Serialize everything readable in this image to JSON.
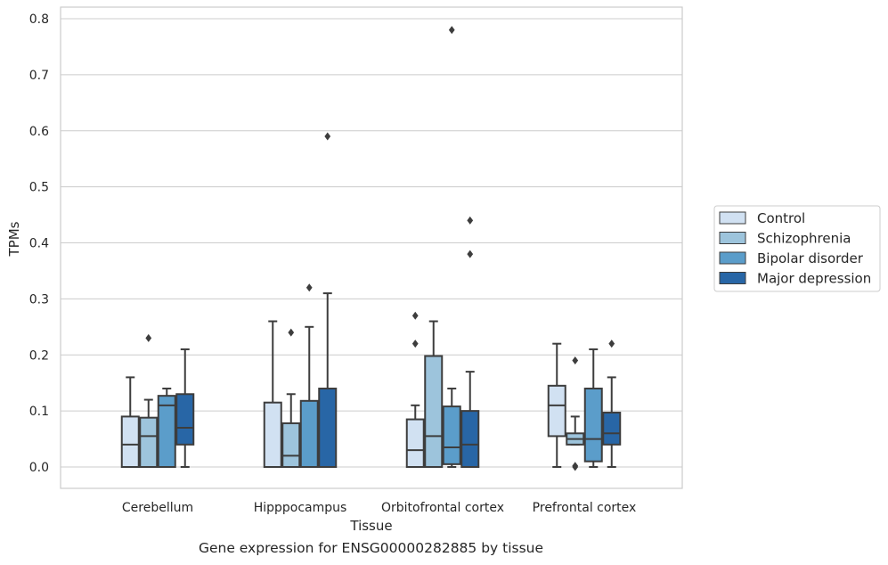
{
  "caption": "Gene expression for ENSG00000282885 by tissue",
  "chart_data": {
    "type": "box",
    "xlabel": "Tissue",
    "ylabel": "TPMs",
    "ylim": [
      -0.04,
      0.82
    ],
    "yticks": [
      0.0,
      0.1,
      0.2,
      0.3,
      0.4,
      0.5,
      0.6,
      0.7,
      0.8
    ],
    "ytick_labels": [
      "0.0",
      "0.1",
      "0.2",
      "0.3",
      "0.4",
      "0.5",
      "0.6",
      "0.7",
      "0.8"
    ],
    "grid": "horizontal",
    "legend_position": "right",
    "categories": [
      "Cerebellum",
      "Hipppocampus",
      "Orbitofrontal cortex",
      "Prefrontal cortex"
    ],
    "series": [
      {
        "name": "Control",
        "color": "#d1e1f2",
        "boxes": [
          {
            "whislo": 0.0,
            "q1": 0.0,
            "med": 0.04,
            "q3": 0.09,
            "whishi": 0.16,
            "fliers": []
          },
          {
            "whislo": 0.0,
            "q1": 0.0,
            "med": 0.0,
            "q3": 0.115,
            "whishi": 0.26,
            "fliers": []
          },
          {
            "whislo": 0.0,
            "q1": 0.0,
            "med": 0.03,
            "q3": 0.085,
            "whishi": 0.11,
            "fliers": [
              0.22,
              0.27
            ]
          },
          {
            "whislo": 0.0,
            "q1": 0.055,
            "med": 0.11,
            "q3": 0.145,
            "whishi": 0.22,
            "fliers": []
          }
        ]
      },
      {
        "name": "Schizophrenia",
        "color": "#9dc4dc",
        "boxes": [
          {
            "whislo": 0.0,
            "q1": 0.0,
            "med": 0.055,
            "q3": 0.088,
            "whishi": 0.12,
            "fliers": [
              0.23
            ]
          },
          {
            "whislo": 0.0,
            "q1": 0.0,
            "med": 0.02,
            "q3": 0.078,
            "whishi": 0.13,
            "fliers": [
              0.24
            ]
          },
          {
            "whislo": 0.0,
            "q1": 0.0,
            "med": 0.055,
            "q3": 0.198,
            "whishi": 0.26,
            "fliers": []
          },
          {
            "whislo": 0.04,
            "q1": 0.04,
            "med": 0.05,
            "q3": 0.06,
            "whishi": 0.09,
            "fliers": [
              0.19,
              0.0,
              0.002
            ]
          }
        ]
      },
      {
        "name": "Bipolar disorder",
        "color": "#5b9dca",
        "boxes": [
          {
            "whislo": 0.0,
            "q1": 0.0,
            "med": 0.11,
            "q3": 0.127,
            "whishi": 0.14,
            "fliers": []
          },
          {
            "whislo": 0.0,
            "q1": 0.0,
            "med": 0.0,
            "q3": 0.118,
            "whishi": 0.25,
            "fliers": [
              0.32
            ]
          },
          {
            "whislo": 0.0,
            "q1": 0.005,
            "med": 0.035,
            "q3": 0.108,
            "whishi": 0.14,
            "fliers": [
              0.78
            ]
          },
          {
            "whislo": 0.0,
            "q1": 0.01,
            "med": 0.05,
            "q3": 0.14,
            "whishi": 0.21,
            "fliers": []
          }
        ]
      },
      {
        "name": "Major depression",
        "color": "#2866a6",
        "boxes": [
          {
            "whislo": 0.0,
            "q1": 0.04,
            "med": 0.07,
            "q3": 0.13,
            "whishi": 0.21,
            "fliers": []
          },
          {
            "whislo": 0.0,
            "q1": 0.0,
            "med": 0.0,
            "q3": 0.14,
            "whishi": 0.31,
            "fliers": [
              0.59
            ]
          },
          {
            "whislo": 0.0,
            "q1": 0.0,
            "med": 0.04,
            "q3": 0.1,
            "whishi": 0.17,
            "fliers": [
              0.38,
              0.44
            ]
          },
          {
            "whislo": 0.0,
            "q1": 0.04,
            "med": 0.06,
            "q3": 0.097,
            "whishi": 0.16,
            "fliers": [
              0.22
            ]
          }
        ]
      }
    ]
  }
}
